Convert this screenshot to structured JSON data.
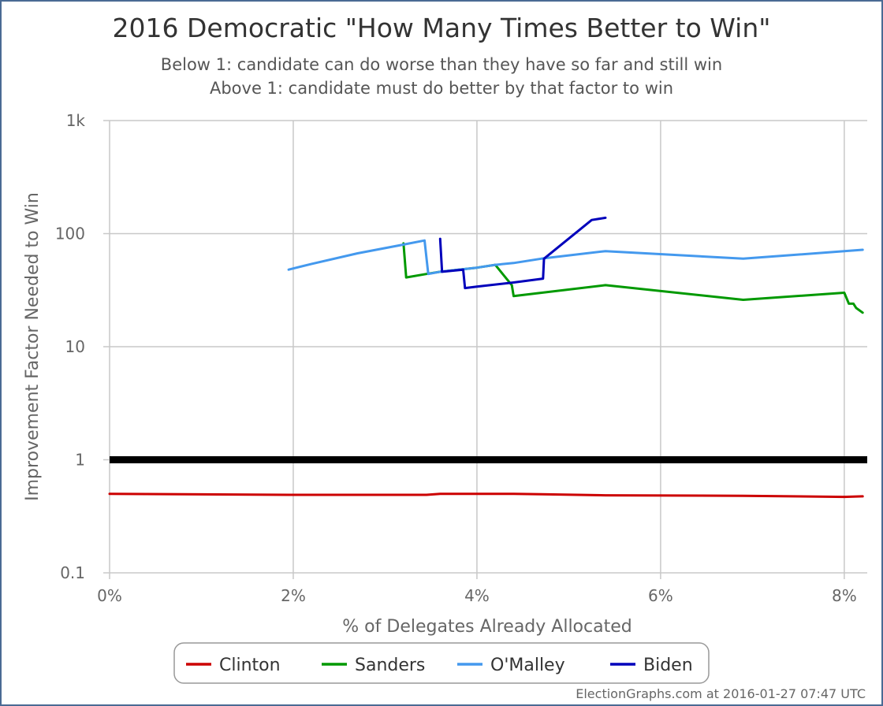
{
  "chart_data": {
    "type": "line",
    "title": "2016 Democratic \"How Many Times Better to Win\"",
    "subtitle_lines": [
      "Below 1: candidate can do worse than they have so far and still win",
      "Above 1: candidate must do better by that factor to win"
    ],
    "xlabel": "% of Delegates Already Allocated",
    "ylabel": "Improvement Factor Needed to Win",
    "y_scale": "log",
    "xlim": [
      0,
      8.25
    ],
    "ylim": [
      0.1,
      1000
    ],
    "x_ticks": [
      {
        "value": 0,
        "label": "0%"
      },
      {
        "value": 2,
        "label": "2%"
      },
      {
        "value": 4,
        "label": "4%"
      },
      {
        "value": 6,
        "label": "6%"
      },
      {
        "value": 8,
        "label": "8%"
      }
    ],
    "y_ticks": [
      {
        "value": 0.1,
        "label": "0.1"
      },
      {
        "value": 1,
        "label": "1"
      },
      {
        "value": 10,
        "label": "10"
      },
      {
        "value": 100,
        "label": "100"
      },
      {
        "value": 1000,
        "label": "1k"
      }
    ],
    "reference_line": {
      "value": 1,
      "color": "#000000"
    },
    "grid": true,
    "legend_position": "bottom",
    "series": [
      {
        "name": "Clinton",
        "color": "#cc0000",
        "points": [
          [
            0,
            0.5
          ],
          [
            1.95,
            0.49
          ],
          [
            2.7,
            0.49
          ],
          [
            3.2,
            0.49
          ],
          [
            3.45,
            0.49
          ],
          [
            3.6,
            0.5
          ],
          [
            3.85,
            0.5
          ],
          [
            4.4,
            0.5
          ],
          [
            4.7,
            0.495
          ],
          [
            5.4,
            0.485
          ],
          [
            6.9,
            0.48
          ],
          [
            8.0,
            0.47
          ],
          [
            8.2,
            0.475
          ]
        ]
      },
      {
        "name": "Sanders",
        "color": "#009900",
        "points": [
          [
            3.2,
            82
          ],
          [
            3.23,
            41
          ],
          [
            3.45,
            44
          ],
          [
            3.6,
            46
          ],
          [
            4.0,
            50
          ],
          [
            4.2,
            53
          ],
          [
            4.3,
            42
          ],
          [
            4.38,
            35
          ],
          [
            4.4,
            28
          ],
          [
            5.4,
            35
          ],
          [
            6.9,
            26
          ],
          [
            8.0,
            30
          ],
          [
            8.05,
            24
          ],
          [
            8.1,
            24
          ],
          [
            8.13,
            22
          ],
          [
            8.2,
            20
          ]
        ]
      },
      {
        "name": "O'Malley",
        "color": "#4499ee",
        "points": [
          [
            1.95,
            48
          ],
          [
            2.2,
            54
          ],
          [
            2.7,
            67
          ],
          [
            3.2,
            80
          ],
          [
            3.43,
            87
          ],
          [
            3.47,
            44
          ],
          [
            3.6,
            46
          ],
          [
            4.0,
            50
          ],
          [
            4.2,
            53
          ],
          [
            4.4,
            55
          ],
          [
            4.7,
            60
          ],
          [
            5.4,
            70
          ],
          [
            6.9,
            60
          ],
          [
            8.2,
            72
          ]
        ]
      },
      {
        "name": "Biden",
        "color": "#0000bb",
        "points": [
          [
            3.6,
            90
          ],
          [
            3.62,
            46
          ],
          [
            3.85,
            48
          ],
          [
            3.87,
            33
          ],
          [
            4.0,
            34
          ],
          [
            4.4,
            37
          ],
          [
            4.72,
            40
          ],
          [
            4.73,
            60
          ],
          [
            5.25,
            132
          ],
          [
            5.4,
            138
          ]
        ]
      }
    ]
  },
  "credit": "ElectionGraphs.com at 2016-01-27 07:47 UTC"
}
